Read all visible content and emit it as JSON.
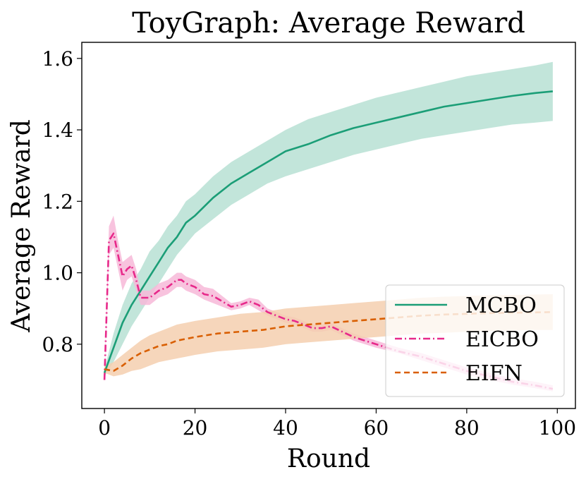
{
  "chart_data": {
    "type": "line",
    "title": "ToyGraph: Average Reward",
    "xlabel": "Round",
    "ylabel": "Average Reward",
    "xlim": [
      -5,
      104
    ],
    "ylim": [
      0.62,
      1.645
    ],
    "xticks": [
      0,
      20,
      40,
      60,
      80,
      100
    ],
    "yticks": [
      0.8,
      1.0,
      1.2,
      1.4,
      1.6
    ],
    "xtick_labels": [
      "0",
      "20",
      "40",
      "60",
      "80",
      "100"
    ],
    "ytick_labels": [
      "0.8",
      "1.0",
      "1.2",
      "1.4",
      "1.6"
    ],
    "legend_position": "lower-right",
    "series": [
      {
        "name": "MCBO",
        "color": "#1b9e77",
        "band_color": "#b7e1d4",
        "dash": "solid",
        "x": [
          0,
          2,
          4,
          6,
          8,
          10,
          12,
          14,
          16,
          18,
          20,
          24,
          28,
          32,
          36,
          40,
          45,
          50,
          55,
          60,
          65,
          70,
          75,
          80,
          85,
          90,
          95,
          99
        ],
        "y": [
          0.72,
          0.79,
          0.86,
          0.91,
          0.95,
          0.99,
          1.03,
          1.07,
          1.1,
          1.14,
          1.16,
          1.21,
          1.25,
          1.28,
          1.31,
          1.34,
          1.36,
          1.385,
          1.405,
          1.42,
          1.435,
          1.45,
          1.465,
          1.475,
          1.485,
          1.495,
          1.503,
          1.508
        ],
        "lower": [
          0.71,
          0.75,
          0.8,
          0.85,
          0.89,
          0.93,
          0.97,
          1.01,
          1.05,
          1.08,
          1.11,
          1.15,
          1.19,
          1.22,
          1.25,
          1.27,
          1.29,
          1.31,
          1.33,
          1.345,
          1.36,
          1.375,
          1.385,
          1.395,
          1.405,
          1.415,
          1.42,
          1.425
        ],
        "upper": [
          0.73,
          0.83,
          0.91,
          0.97,
          1.01,
          1.06,
          1.09,
          1.13,
          1.16,
          1.2,
          1.22,
          1.27,
          1.31,
          1.34,
          1.37,
          1.4,
          1.43,
          1.45,
          1.47,
          1.49,
          1.505,
          1.52,
          1.535,
          1.55,
          1.56,
          1.57,
          1.58,
          1.59
        ]
      },
      {
        "name": "EICBO",
        "color": "#e7298a",
        "band_color": "#f7b8d8",
        "dash": "dashdot",
        "x": [
          0,
          1,
          2,
          3,
          4,
          5,
          6,
          7,
          8,
          9,
          10,
          12,
          14,
          16,
          17,
          18,
          20,
          22,
          24,
          26,
          28,
          30,
          32,
          34,
          36,
          38,
          40,
          42,
          44,
          46,
          48,
          50,
          55,
          60,
          65,
          70,
          75,
          80,
          85,
          90,
          95,
          99
        ],
        "y": [
          0.7,
          1.09,
          1.11,
          1.05,
          0.99,
          1.01,
          1.02,
          0.98,
          0.93,
          0.93,
          0.93,
          0.95,
          0.96,
          0.98,
          0.98,
          0.97,
          0.96,
          0.94,
          0.935,
          0.92,
          0.905,
          0.91,
          0.92,
          0.91,
          0.89,
          0.88,
          0.87,
          0.865,
          0.855,
          0.845,
          0.845,
          0.85,
          0.82,
          0.8,
          0.78,
          0.765,
          0.745,
          0.725,
          0.71,
          0.695,
          0.685,
          0.675
        ],
        "lower": [
          0.7,
          1.05,
          1.07,
          1.01,
          0.95,
          0.98,
          0.99,
          0.95,
          0.91,
          0.91,
          0.91,
          0.93,
          0.94,
          0.96,
          0.96,
          0.95,
          0.94,
          0.925,
          0.915,
          0.905,
          0.895,
          0.9,
          0.91,
          0.895,
          0.88,
          0.87,
          0.86,
          0.855,
          0.845,
          0.835,
          0.835,
          0.84,
          0.81,
          0.79,
          0.775,
          0.755,
          0.735,
          0.715,
          0.7,
          0.687,
          0.677,
          0.668
        ],
        "upper": [
          0.71,
          1.13,
          1.16,
          1.09,
          1.03,
          1.04,
          1.05,
          1.01,
          0.95,
          0.95,
          0.95,
          0.97,
          0.98,
          1.0,
          1.0,
          0.99,
          0.98,
          0.96,
          0.955,
          0.935,
          0.915,
          0.92,
          0.93,
          0.925,
          0.9,
          0.89,
          0.88,
          0.875,
          0.865,
          0.855,
          0.855,
          0.86,
          0.83,
          0.81,
          0.79,
          0.775,
          0.755,
          0.735,
          0.72,
          0.705,
          0.695,
          0.685
        ]
      },
      {
        "name": "EIFN",
        "color": "#d95f02",
        "band_color": "#f5cfaf",
        "dash": "dashed",
        "x": [
          0,
          2,
          4,
          6,
          8,
          10,
          12,
          14,
          16,
          18,
          20,
          25,
          30,
          35,
          40,
          45,
          50,
          55,
          60,
          65,
          70,
          75,
          80,
          85,
          90,
          95,
          99
        ],
        "y": [
          0.73,
          0.725,
          0.74,
          0.76,
          0.775,
          0.785,
          0.795,
          0.8,
          0.81,
          0.815,
          0.82,
          0.83,
          0.835,
          0.84,
          0.85,
          0.855,
          0.86,
          0.865,
          0.87,
          0.875,
          0.88,
          0.883,
          0.885,
          0.887,
          0.888,
          0.889,
          0.89
        ],
        "lower": [
          0.72,
          0.71,
          0.715,
          0.725,
          0.73,
          0.74,
          0.75,
          0.755,
          0.76,
          0.765,
          0.77,
          0.78,
          0.785,
          0.79,
          0.8,
          0.805,
          0.81,
          0.815,
          0.82,
          0.825,
          0.83,
          0.832,
          0.835,
          0.837,
          0.838,
          0.84,
          0.84
        ],
        "upper": [
          0.74,
          0.75,
          0.77,
          0.79,
          0.81,
          0.825,
          0.835,
          0.845,
          0.855,
          0.86,
          0.865,
          0.875,
          0.885,
          0.89,
          0.9,
          0.905,
          0.91,
          0.915,
          0.92,
          0.925,
          0.93,
          0.933,
          0.935,
          0.937,
          0.938,
          0.939,
          0.94
        ]
      }
    ]
  }
}
